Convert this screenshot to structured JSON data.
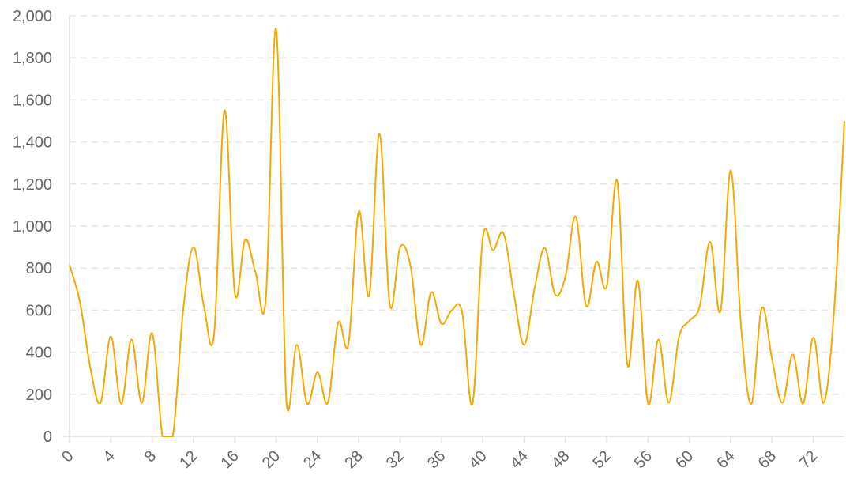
{
  "chart_data": {
    "type": "line",
    "title": "",
    "xlabel": "",
    "ylabel": "",
    "ylim": [
      0,
      2000
    ],
    "xlim": [
      0,
      75
    ],
    "grid": true,
    "y_ticks": [
      "0",
      "200",
      "400",
      "600",
      "800",
      "1,000",
      "1,200",
      "1,400",
      "1,600",
      "1,800",
      "2,000"
    ],
    "x_ticks": [
      "0",
      "4",
      "8",
      "12",
      "16",
      "20",
      "24",
      "28",
      "32",
      "36",
      "40",
      "44",
      "48",
      "52",
      "56",
      "60",
      "64",
      "68",
      "72"
    ],
    "colors": {
      "series": "#f5a900",
      "grid": "#e6e6e6",
      "text": "#666666"
    },
    "series": [
      {
        "values": [
          815,
          640,
          330,
          160,
          475,
          155,
          460,
          160,
          490,
          0,
          0,
          600,
          900,
          620,
          490,
          1550,
          680,
          935,
          780,
          655,
          1935,
          155,
          435,
          155,
          305,
          160,
          540,
          440,
          1070,
          670,
          1440,
          625,
          900,
          810,
          435,
          685,
          535,
          600,
          590,
          155,
          945,
          885,
          965,
          680,
          435,
          700,
          895,
          675,
          760,
          1045,
          620,
          830,
          715,
          1215,
          340,
          740,
          155,
          460,
          160,
          475,
          550,
          620,
          925,
          595,
          1265,
          520,
          155,
          610,
          365,
          160,
          390,
          155,
          470,
          160,
          600,
          1500
        ]
      }
    ]
  }
}
